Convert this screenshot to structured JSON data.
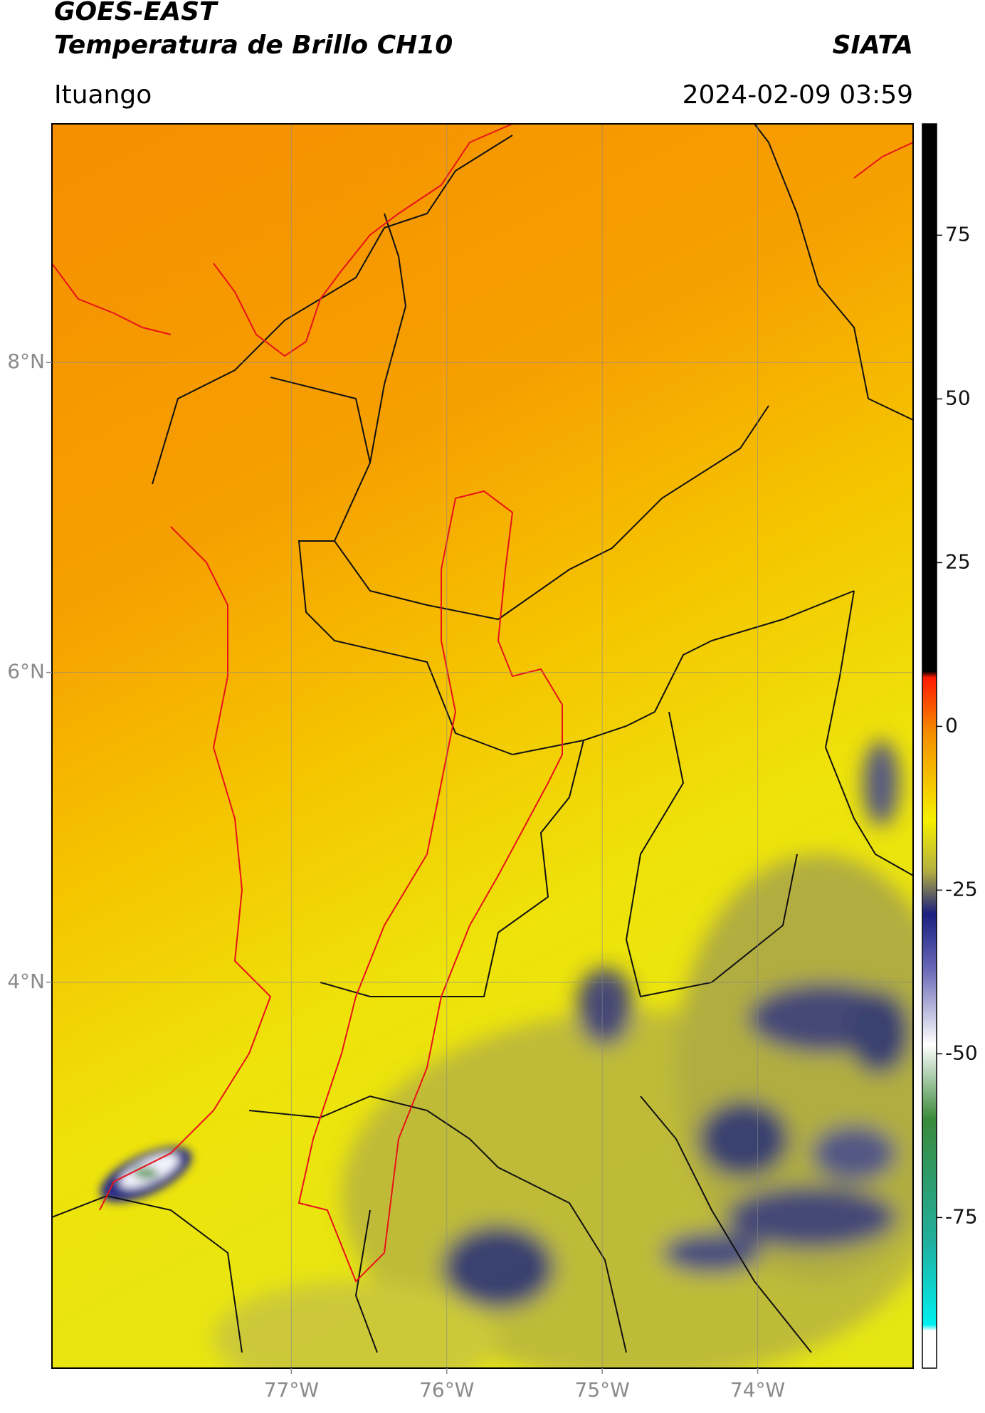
{
  "header": {
    "satellite": "GOES-EAST",
    "product": "Temperatura de Brillo CH10",
    "agency": "SIATA",
    "location": "Ituango",
    "timestamp": "2024-02-09 03:59"
  },
  "map": {
    "xlim": [
      -78.54,
      -73.0
    ],
    "ylim": [
      1.51,
      9.54
    ],
    "xticks": [
      {
        "value": -77,
        "label": "77°W"
      },
      {
        "value": -76,
        "label": "76°W"
      },
      {
        "value": -75,
        "label": "75°W"
      },
      {
        "value": -74,
        "label": "74°W"
      }
    ],
    "yticks": [
      {
        "value": 8,
        "label": "8°N"
      },
      {
        "value": 6,
        "label": "6°N"
      },
      {
        "value": 4,
        "label": "4°N"
      }
    ],
    "grid": true
  },
  "colorbar": {
    "clim": [
      -98,
      92
    ],
    "ticks": [
      75,
      50,
      25,
      0,
      -25,
      -50,
      -75
    ]
  }
}
